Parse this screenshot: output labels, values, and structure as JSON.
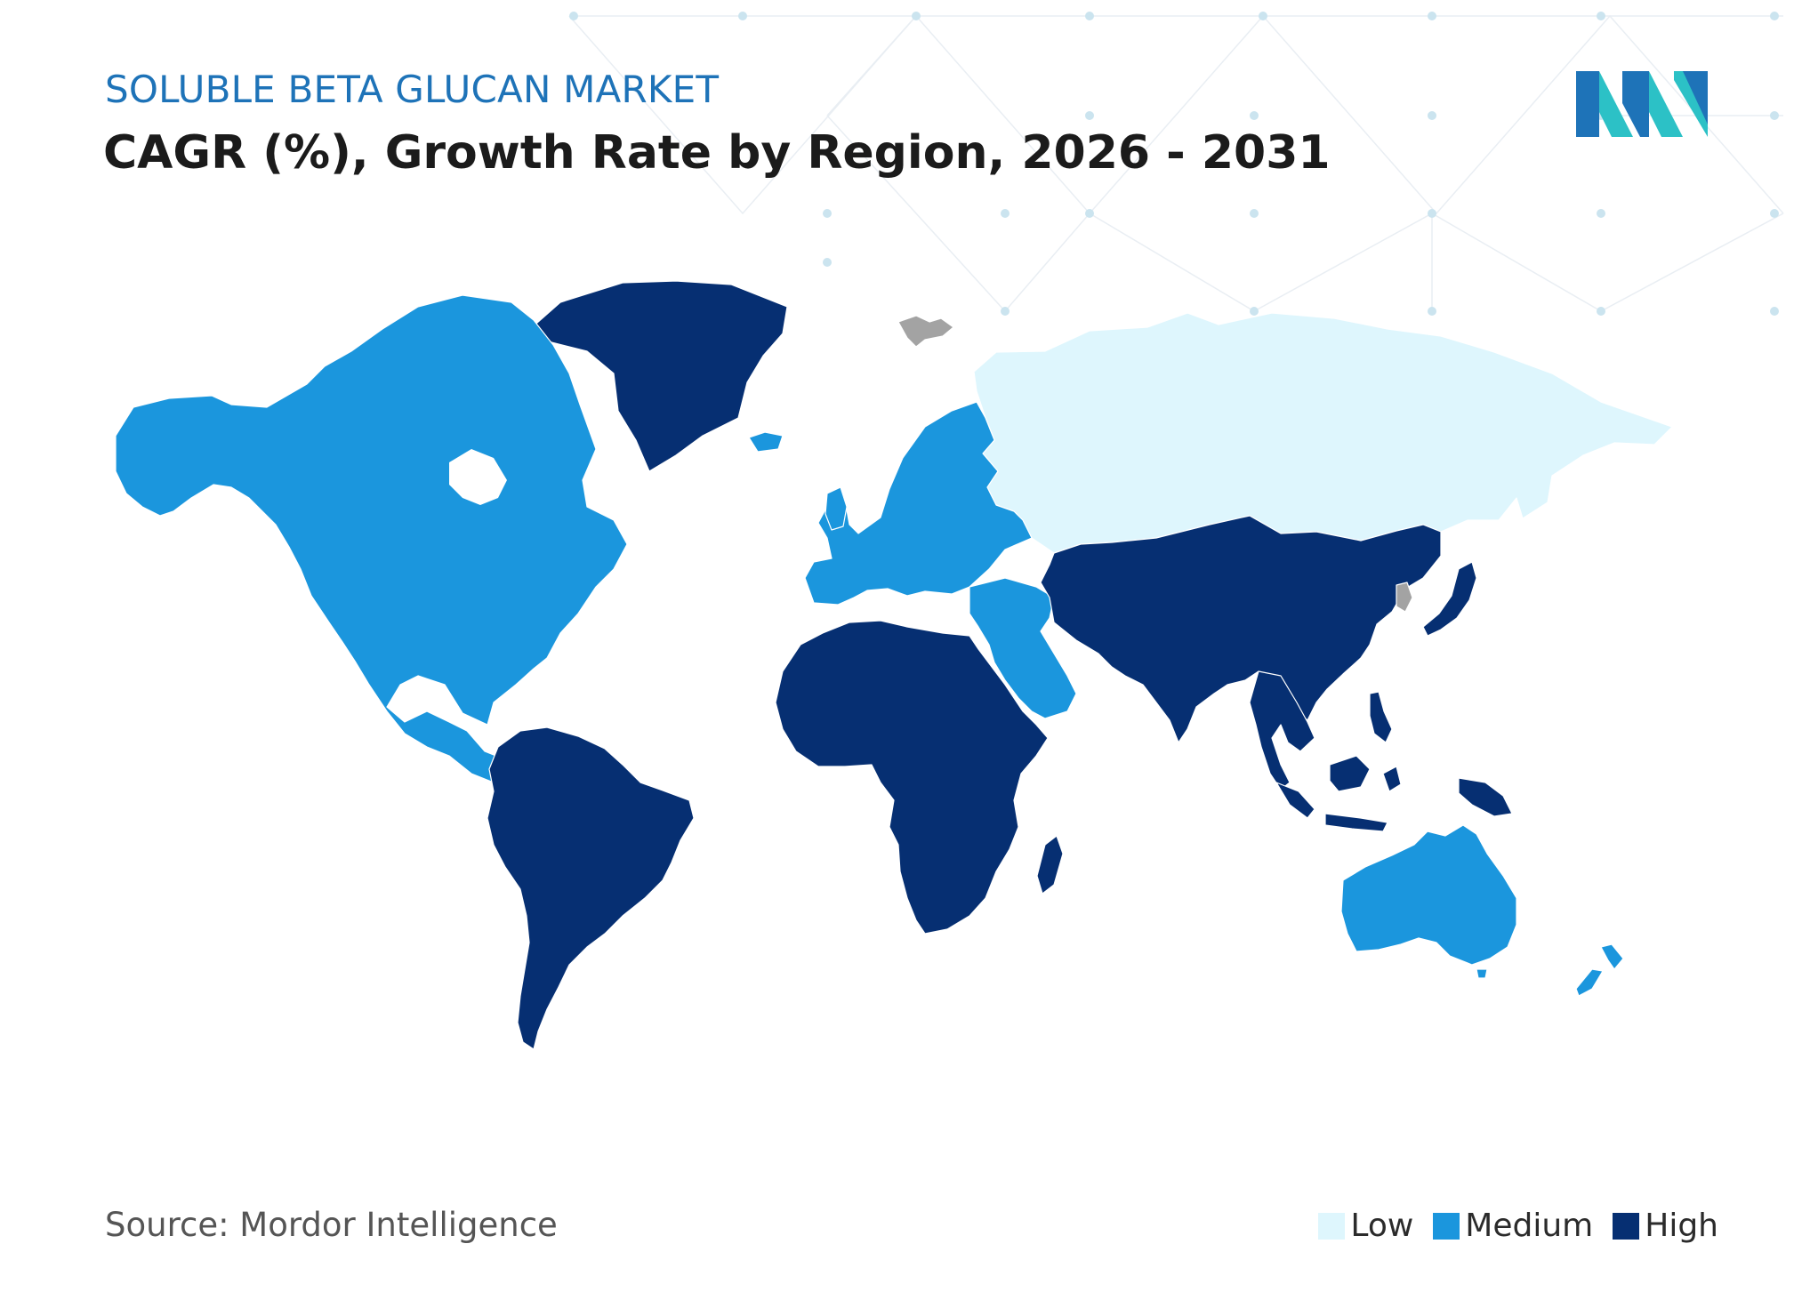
{
  "header": {
    "subtitle": "SOLUBLE BETA GLUCAN MARKET",
    "title": "CAGR (%), Growth Rate by Region, 2026 - 2031"
  },
  "logo": {
    "icon": "mordor-intelligence-logo",
    "colors": [
      "#1e73b8",
      "#2cc1c6"
    ]
  },
  "map": {
    "type": "choropleth",
    "regions": [
      {
        "name": "North America",
        "level": "Medium"
      },
      {
        "name": "Greenland",
        "level": "High"
      },
      {
        "name": "Europe",
        "level": "Medium"
      },
      {
        "name": "Russia",
        "level": "Low"
      },
      {
        "name": "Middle East",
        "level": "Medium"
      },
      {
        "name": "South America",
        "level": "High"
      },
      {
        "name": "Africa",
        "level": "High"
      },
      {
        "name": "Asia-Pacific",
        "level": "High"
      },
      {
        "name": "Australia",
        "level": "Medium"
      },
      {
        "name": "New Zealand",
        "level": "Medium"
      }
    ],
    "colors": {
      "Low": "#def6fd",
      "Medium": "#1b96dd",
      "High": "#062f72",
      "No data": "#a3a3a3"
    }
  },
  "legend": {
    "items": [
      {
        "label": "Low",
        "color": "#def6fd"
      },
      {
        "label": "Medium",
        "color": "#1b96dd"
      },
      {
        "label": "High",
        "color": "#062f72"
      }
    ]
  },
  "footer": {
    "source": "Source: Mordor Intelligence"
  }
}
